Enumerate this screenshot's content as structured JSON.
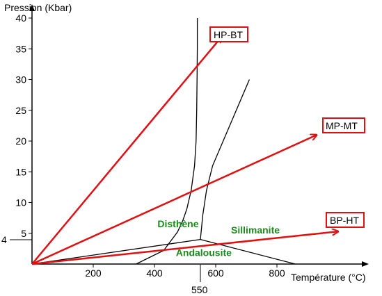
{
  "chart_data": {
    "type": "line",
    "title": "",
    "xlabel": "Température (°C)",
    "ylabel": "Pression (Kbar)",
    "xlim": [
      0,
      1040
    ],
    "ylim": [
      0,
      43
    ],
    "grid": false,
    "x_ticks": [
      {
        "value": 200,
        "label": "200"
      },
      {
        "value": 400,
        "label": "400"
      },
      {
        "value": 600,
        "label": "600"
      },
      {
        "value": 800,
        "label": "800"
      }
    ],
    "y_ticks": [
      {
        "value": 5,
        "label": "5"
      },
      {
        "value": 10,
        "label": "10"
      },
      {
        "value": 15,
        "label": "15"
      },
      {
        "value": 20,
        "label": "20"
      },
      {
        "value": 25,
        "label": "25"
      },
      {
        "value": 30,
        "label": "30"
      },
      {
        "value": 35,
        "label": "35"
      },
      {
        "value": 40,
        "label": "40"
      }
    ],
    "marker_labels": {
      "x_550": "550",
      "y_4": "4"
    },
    "gradients": [
      {
        "name": "HP-BT",
        "from": [
          0,
          0
        ],
        "to": [
          620,
          37
        ]
      },
      {
        "name": "MP-MT",
        "from": [
          0,
          0
        ],
        "to": [
          930,
          21
        ]
      },
      {
        "name": "BP-HT",
        "from": [
          0,
          0
        ],
        "to": [
          1000,
          5.3
        ]
      }
    ],
    "phase_boundaries": {
      "disthene_sillimanite": [
        [
          550,
          4
        ],
        [
          558,
          8
        ],
        [
          570,
          12
        ],
        [
          590,
          16
        ],
        [
          710,
          30
        ]
      ],
      "andalousite_disthene": [
        [
          0,
          0
        ],
        [
          550,
          4
        ]
      ],
      "andalousite_sillimanite": [
        [
          550,
          4
        ],
        [
          860,
          0
        ]
      ],
      "steep_curve": [
        [
          340,
          0
        ],
        [
          430,
          2.2
        ],
        [
          475,
          5.2
        ],
        [
          492,
          7
        ],
        [
          506,
          9
        ],
        [
          520,
          12
        ],
        [
          531,
          16
        ],
        [
          536,
          20
        ],
        [
          538,
          25
        ],
        [
          539,
          30
        ],
        [
          540,
          35
        ],
        [
          540,
          40
        ]
      ]
    },
    "zones": [
      {
        "name": "Disthène",
        "at": [
          410,
          6
        ]
      },
      {
        "name": "Sillimanite",
        "at": [
          650,
          5
        ]
      },
      {
        "name": "Andalousite",
        "at": [
          470,
          1.3
        ]
      }
    ],
    "colors": {
      "gradient_arrow": "#e01010",
      "box_border": "#e01010",
      "zone_text": "#1a8c1a",
      "axis": "#000000"
    }
  }
}
